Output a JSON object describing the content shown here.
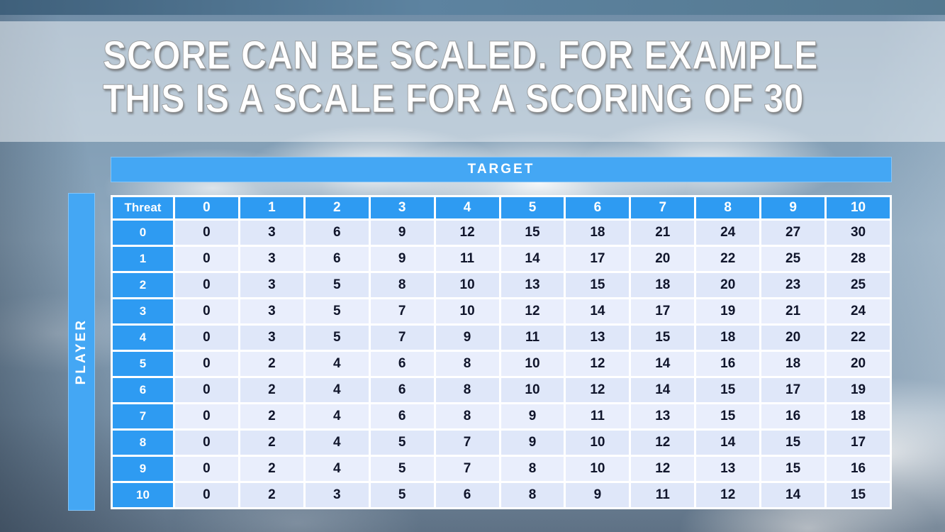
{
  "slide": {
    "title_lines": [
      "SCORE CAN BE SCALED. FOR EXAMPLE",
      "THIS IS A SCALE FOR A SCORING OF 30"
    ]
  },
  "table": {
    "target_label": "TARGET",
    "player_label": "PLAYER",
    "corner_label": "Threat",
    "column_headers": [
      "0",
      "1",
      "2",
      "3",
      "4",
      "5",
      "6",
      "7",
      "8",
      "9",
      "10"
    ],
    "row_headers": [
      "0",
      "1",
      "2",
      "3",
      "4",
      "5",
      "6",
      "7",
      "8",
      "9",
      "10"
    ],
    "rows": [
      [
        0,
        3,
        6,
        9,
        12,
        15,
        18,
        21,
        24,
        27,
        30
      ],
      [
        0,
        3,
        6,
        9,
        11,
        14,
        17,
        20,
        22,
        25,
        28
      ],
      [
        0,
        3,
        5,
        8,
        10,
        13,
        15,
        18,
        20,
        23,
        25
      ],
      [
        0,
        3,
        5,
        7,
        10,
        12,
        14,
        17,
        19,
        21,
        24
      ],
      [
        0,
        3,
        5,
        7,
        9,
        11,
        13,
        15,
        18,
        20,
        22
      ],
      [
        0,
        2,
        4,
        6,
        8,
        10,
        12,
        14,
        16,
        18,
        20
      ],
      [
        0,
        2,
        4,
        6,
        8,
        10,
        12,
        14,
        15,
        17,
        19
      ],
      [
        0,
        2,
        4,
        6,
        8,
        9,
        11,
        13,
        15,
        16,
        18
      ],
      [
        0,
        2,
        4,
        5,
        7,
        9,
        10,
        12,
        14,
        15,
        17
      ],
      [
        0,
        2,
        4,
        5,
        7,
        8,
        10,
        12,
        13,
        15,
        16
      ],
      [
        0,
        2,
        3,
        5,
        6,
        8,
        9,
        11,
        12,
        14,
        15
      ]
    ]
  },
  "colors": {
    "header_blue": "#2e9bf2",
    "band_blue": "#44a7f4",
    "row_even": "#dfe7f9",
    "row_odd": "#e9eefc",
    "cell_text": "#10152b"
  }
}
